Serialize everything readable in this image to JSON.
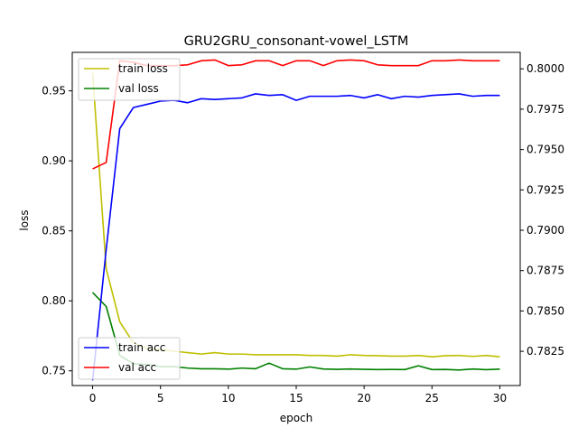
{
  "chart_data": {
    "type": "line",
    "title": "GRU2GRU_consonant-vowel_LSTM",
    "xlabel": "epoch",
    "ylabel": "loss",
    "y2label": "",
    "xlim": [
      -1.5,
      31.5
    ],
    "ylim": [
      0.7395,
      0.9775
    ],
    "y2lim": [
      0.78038,
      0.80102
    ],
    "x_ticks": [
      0,
      5,
      10,
      15,
      20,
      25,
      30
    ],
    "y_ticks": [
      0.75,
      0.8,
      0.85,
      0.9,
      0.95
    ],
    "y_tick_labels": [
      "0.75",
      "0.80",
      "0.85",
      "0.90",
      "0.95"
    ],
    "y2_ticks": [
      0.7825,
      0.785,
      0.7875,
      0.79,
      0.7925,
      0.795,
      0.7975,
      0.8
    ],
    "y2_tick_labels": [
      "0.7825",
      "0.7850",
      "0.7875",
      "0.7900",
      "0.7925",
      "0.7950",
      "0.7975",
      "0.8000"
    ],
    "grid": false,
    "x": [
      0,
      1,
      2,
      3,
      4,
      5,
      6,
      7,
      8,
      9,
      10,
      11,
      12,
      13,
      14,
      15,
      16,
      17,
      18,
      19,
      20,
      21,
      22,
      23,
      24,
      25,
      26,
      27,
      28,
      29,
      30
    ],
    "legend_loss": {
      "placement": "top-left"
    },
    "legend_acc": {
      "placement": "bottom-left"
    },
    "series": [
      {
        "name": "train loss",
        "axis": "left",
        "color": "#bfbf00",
        "values": [
          0.963,
          0.823,
          0.785,
          0.77,
          0.766,
          0.765,
          0.764,
          0.763,
          0.762,
          0.763,
          0.762,
          0.762,
          0.7615,
          0.7615,
          0.7615,
          0.7615,
          0.761,
          0.761,
          0.7605,
          0.7615,
          0.761,
          0.7608,
          0.7605,
          0.7605,
          0.761,
          0.76,
          0.7608,
          0.761,
          0.7603,
          0.761,
          0.76
        ]
      },
      {
        "name": "val loss",
        "axis": "left",
        "color": "#008000",
        "values": [
          0.806,
          0.796,
          0.761,
          0.755,
          0.7545,
          0.753,
          0.753,
          0.752,
          0.7515,
          0.7515,
          0.7512,
          0.752,
          0.7515,
          0.7555,
          0.7515,
          0.7512,
          0.7528,
          0.7513,
          0.7511,
          0.7513,
          0.7511,
          0.7509,
          0.751,
          0.7509,
          0.7536,
          0.7509,
          0.751,
          0.7506,
          0.7513,
          0.7508,
          0.7512
        ]
      },
      {
        "name": "train acc",
        "axis": "right",
        "color": "#0000ff",
        "values": [
          0.7807,
          0.7888,
          0.7963,
          0.7976,
          0.7978,
          0.798,
          0.79805,
          0.7979,
          0.79815,
          0.7981,
          0.79815,
          0.7982,
          0.79845,
          0.79835,
          0.7984,
          0.79805,
          0.7983,
          0.7983,
          0.7983,
          0.79835,
          0.7982,
          0.7984,
          0.79815,
          0.7983,
          0.79825,
          0.79835,
          0.7984,
          0.79845,
          0.7983,
          0.79835,
          0.79835
        ]
      },
      {
        "name": "val acc",
        "axis": "right",
        "color": "#ff0000",
        "values": [
          0.7938,
          0.7942,
          0.8005,
          0.8004,
          0.8002,
          0.8002,
          0.8002,
          0.80025,
          0.8005,
          0.80055,
          0.8002,
          0.80025,
          0.8005,
          0.8005,
          0.8002,
          0.8005,
          0.8005,
          0.8002,
          0.8005,
          0.80055,
          0.8005,
          0.80025,
          0.8002,
          0.8002,
          0.8002,
          0.8005,
          0.8005,
          0.80055,
          0.8005,
          0.8005,
          0.8005
        ]
      }
    ]
  }
}
